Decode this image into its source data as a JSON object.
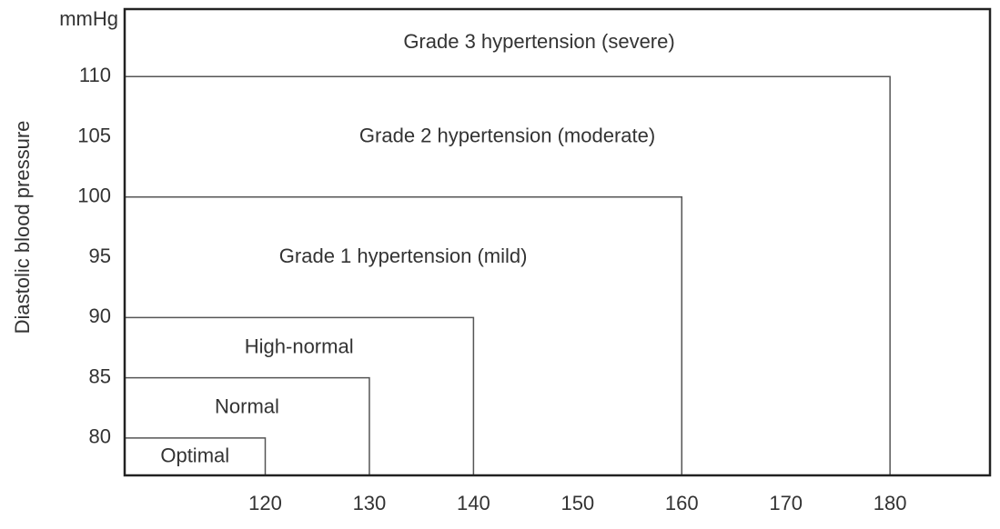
{
  "chart_data": {
    "type": "region",
    "y_unit": "mmHg",
    "y_label": "Diastolic blood pressure",
    "xlim": [
      106.5,
      189.6
    ],
    "ylim": [
      76.9,
      115.6
    ],
    "xticks": [
      120,
      130,
      140,
      150,
      160,
      170,
      180
    ],
    "yticks": [
      80,
      85,
      90,
      95,
      100,
      105,
      110
    ],
    "color": "#555555",
    "regions": [
      {
        "label": "Optimal",
        "x": 120,
        "y": 80
      },
      {
        "label": "Normal",
        "x": 130,
        "y": 85
      },
      {
        "label": "High-normal",
        "x": 140,
        "y": 90
      },
      {
        "label": "Grade 1 hypertension (mild)",
        "x": 160,
        "y": 100
      },
      {
        "label": "Grade 2 hypertension (moderate)",
        "x": 180,
        "y": 110
      },
      {
        "label": "Grade 3 hypertension (severe)"
      }
    ]
  }
}
